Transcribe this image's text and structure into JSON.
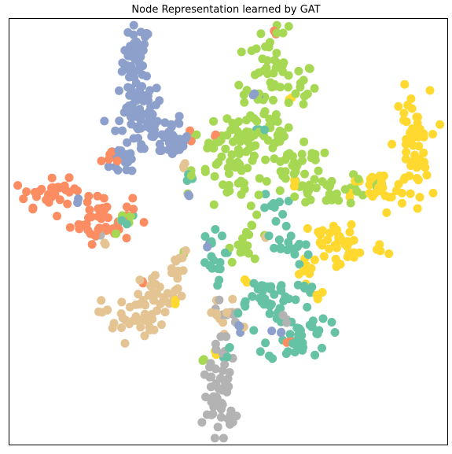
{
  "chart_data": {
    "type": "scatter",
    "title": "Node Representation learned by GAT",
    "xlabel": "",
    "ylabel": "",
    "xlim": [
      0,
      100
    ],
    "ylim": [
      0,
      100
    ],
    "grid": false,
    "legend": "none",
    "axes_ticks": false,
    "series": [
      {
        "color": "#8da0cb",
        "clusters": [
          {
            "cx": 29,
            "cy": 90,
            "rx": 1.6,
            "ry": 4.5,
            "n": 46
          },
          {
            "cx": 30,
            "cy": 80,
            "rx": 2.4,
            "ry": 2.5,
            "n": 32
          },
          {
            "cx": 32,
            "cy": 73,
            "rx": 4.5,
            "ry": 2.8,
            "n": 50
          },
          {
            "cx": 37,
            "cy": 71,
            "rx": 2.5,
            "ry": 1.6,
            "n": 20
          },
          {
            "cx": 27,
            "cy": 67,
            "rx": 2.0,
            "ry": 2.0,
            "n": 18
          },
          {
            "cx": 15,
            "cy": 57,
            "rx": 0.5,
            "ry": 0.5,
            "n": 2
          },
          {
            "cx": 41,
            "cy": 59,
            "rx": 0.6,
            "ry": 0.6,
            "n": 3
          },
          {
            "cx": 56,
            "cy": 82,
            "rx": 0.6,
            "ry": 0.5,
            "n": 3
          },
          {
            "cx": 62,
            "cy": 26,
            "rx": 0.6,
            "ry": 0.6,
            "n": 3
          },
          {
            "cx": 52,
            "cy": 28,
            "rx": 0.8,
            "ry": 0.8,
            "n": 3
          },
          {
            "cx": 46,
            "cy": 47,
            "rx": 0.6,
            "ry": 0.6,
            "n": 2
          }
        ]
      },
      {
        "color": "#fc8d62",
        "clusters": [
          {
            "cx": 10,
            "cy": 59,
            "rx": 4.5,
            "ry": 1.6,
            "n": 34
          },
          {
            "cx": 21,
            "cy": 53,
            "rx": 3.5,
            "ry": 2.8,
            "n": 38
          },
          {
            "cx": 24,
            "cy": 67,
            "rx": 1.5,
            "ry": 1.0,
            "n": 6
          },
          {
            "cx": 60,
            "cy": 96,
            "rx": 0.5,
            "ry": 0.5,
            "n": 2
          },
          {
            "cx": 42,
            "cy": 73,
            "rx": 0.5,
            "ry": 0.5,
            "n": 2
          },
          {
            "cx": 30,
            "cy": 38,
            "rx": 0.5,
            "ry": 0.5,
            "n": 2
          },
          {
            "cx": 64,
            "cy": 24,
            "rx": 0.6,
            "ry": 0.6,
            "n": 3
          },
          {
            "cx": 47,
            "cy": 73,
            "rx": 0.5,
            "ry": 0.5,
            "n": 2
          }
        ]
      },
      {
        "color": "#a6d854",
        "clusters": [
          {
            "cx": 60,
            "cy": 84,
            "rx": 4.0,
            "ry": 6.5,
            "n": 62
          },
          {
            "cx": 55,
            "cy": 73,
            "rx": 6.0,
            "ry": 3.5,
            "n": 50
          },
          {
            "cx": 50,
            "cy": 63,
            "rx": 3.5,
            "ry": 4.5,
            "n": 38
          },
          {
            "cx": 66,
            "cy": 65,
            "rx": 4.0,
            "ry": 2.5,
            "n": 30
          },
          {
            "cx": 73,
            "cy": 60,
            "rx": 5.0,
            "ry": 1.8,
            "n": 34
          },
          {
            "cx": 55,
            "cy": 48,
            "rx": 2.5,
            "ry": 2.5,
            "n": 16
          },
          {
            "cx": 27,
            "cy": 52,
            "rx": 2.0,
            "ry": 1.2,
            "n": 8
          },
          {
            "cx": 39,
            "cy": 45,
            "rx": 0.6,
            "ry": 0.6,
            "n": 2
          },
          {
            "cx": 44,
            "cy": 20,
            "rx": 0.6,
            "ry": 0.6,
            "n": 2
          },
          {
            "cx": 84,
            "cy": 62,
            "rx": 1.2,
            "ry": 1.0,
            "n": 4
          },
          {
            "cx": 68,
            "cy": 86,
            "rx": 1.5,
            "ry": 1.5,
            "n": 6
          },
          {
            "cx": 42,
            "cy": 64,
            "rx": 0.6,
            "ry": 0.6,
            "n": 2
          }
        ]
      },
      {
        "color": "#ffd92f",
        "clusters": [
          {
            "cx": 92,
            "cy": 70,
            "rx": 2.0,
            "ry": 6.5,
            "n": 56
          },
          {
            "cx": 84,
            "cy": 59,
            "rx": 3.0,
            "ry": 2.5,
            "n": 28
          },
          {
            "cx": 76,
            "cy": 47,
            "rx": 5.0,
            "ry": 3.5,
            "n": 46
          },
          {
            "cx": 68,
            "cy": 42,
            "rx": 1.5,
            "ry": 1.5,
            "n": 8
          },
          {
            "cx": 70,
            "cy": 35,
            "rx": 1.0,
            "ry": 1.0,
            "n": 4
          },
          {
            "cx": 66,
            "cy": 62,
            "rx": 0.8,
            "ry": 0.8,
            "n": 3
          },
          {
            "cx": 54,
            "cy": 38,
            "rx": 0.6,
            "ry": 0.6,
            "n": 2
          },
          {
            "cx": 38,
            "cy": 33,
            "rx": 0.5,
            "ry": 0.5,
            "n": 2
          },
          {
            "cx": 47,
            "cy": 21,
            "rx": 0.5,
            "ry": 0.5,
            "n": 2
          },
          {
            "cx": 65,
            "cy": 81,
            "rx": 0.6,
            "ry": 0.6,
            "n": 2
          }
        ]
      },
      {
        "color": "#66c2a5",
        "clusters": [
          {
            "cx": 66,
            "cy": 26,
            "rx": 3.5,
            "ry": 3.5,
            "n": 40
          },
          {
            "cx": 58,
            "cy": 35,
            "rx": 4.0,
            "ry": 2.2,
            "n": 34
          },
          {
            "cx": 46,
            "cy": 44,
            "rx": 1.6,
            "ry": 2.8,
            "n": 16
          },
          {
            "cx": 63,
            "cy": 46,
            "rx": 3.0,
            "ry": 2.0,
            "n": 16
          },
          {
            "cx": 61,
            "cy": 55,
            "rx": 1.5,
            "ry": 2.0,
            "n": 10
          },
          {
            "cx": 26,
            "cy": 53,
            "rx": 1.0,
            "ry": 0.8,
            "n": 4
          },
          {
            "cx": 49,
            "cy": 22,
            "rx": 1.0,
            "ry": 1.0,
            "n": 4
          },
          {
            "cx": 41,
            "cy": 62,
            "rx": 0.8,
            "ry": 0.8,
            "n": 3
          },
          {
            "cx": 58,
            "cy": 74,
            "rx": 0.8,
            "ry": 0.8,
            "n": 3
          },
          {
            "cx": 67,
            "cy": 37,
            "rx": 1.2,
            "ry": 1.0,
            "n": 5
          }
        ]
      },
      {
        "color": "#e5c494",
        "clusters": [
          {
            "cx": 28,
            "cy": 30,
            "rx": 3.5,
            "ry": 2.8,
            "n": 40
          },
          {
            "cx": 35,
            "cy": 35,
            "rx": 2.5,
            "ry": 2.5,
            "n": 24
          },
          {
            "cx": 39,
            "cy": 41,
            "rx": 1.5,
            "ry": 2.5,
            "n": 10
          },
          {
            "cx": 49,
            "cy": 30,
            "rx": 2.0,
            "ry": 2.5,
            "n": 12
          },
          {
            "cx": 40,
            "cy": 65,
            "rx": 1.0,
            "ry": 1.0,
            "n": 4
          },
          {
            "cx": 22,
            "cy": 47,
            "rx": 0.5,
            "ry": 0.5,
            "n": 2
          },
          {
            "cx": 59,
            "cy": 49,
            "rx": 0.6,
            "ry": 0.6,
            "n": 2
          }
        ]
      },
      {
        "color": "#b3b3b3",
        "clusters": [
          {
            "cx": 48,
            "cy": 11,
            "rx": 1.8,
            "ry": 4.5,
            "n": 40
          },
          {
            "cx": 48,
            "cy": 22,
            "rx": 1.5,
            "ry": 2.0,
            "n": 10
          },
          {
            "cx": 51,
            "cy": 30,
            "rx": 1.2,
            "ry": 1.2,
            "n": 6
          },
          {
            "cx": 63,
            "cy": 30,
            "rx": 0.8,
            "ry": 0.8,
            "n": 3
          },
          {
            "cx": 20,
            "cy": 49,
            "rx": 0.5,
            "ry": 0.5,
            "n": 2
          },
          {
            "cx": 47,
            "cy": 33,
            "rx": 0.6,
            "ry": 0.6,
            "n": 2
          }
        ]
      }
    ]
  }
}
